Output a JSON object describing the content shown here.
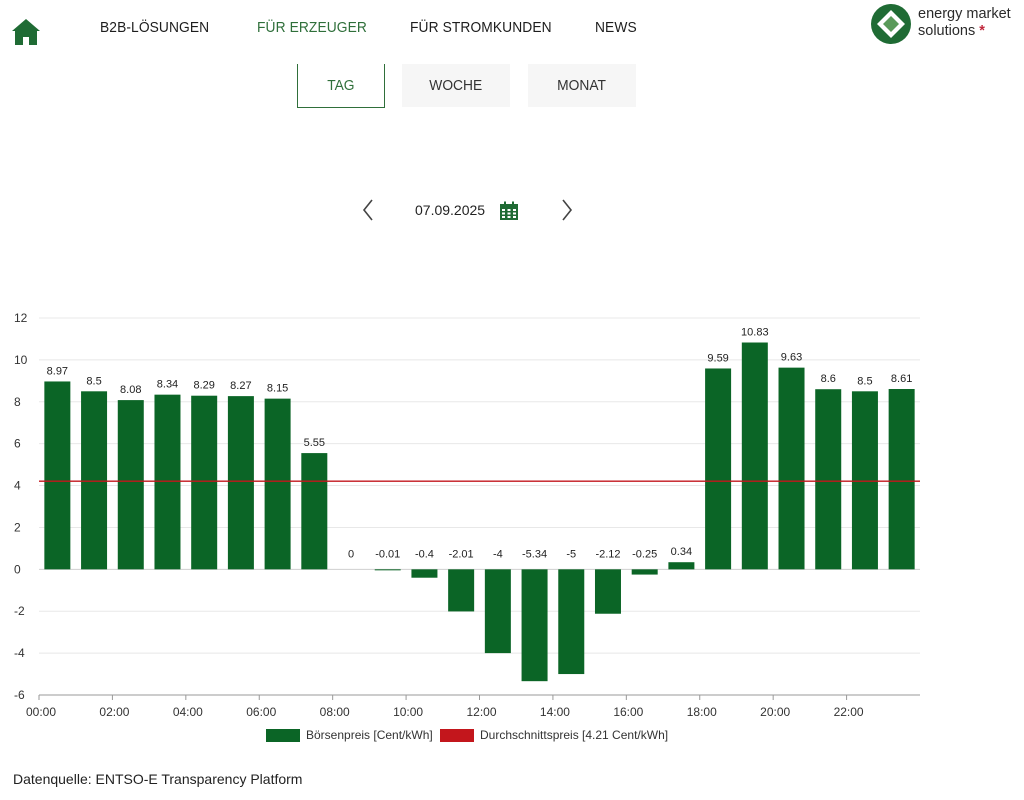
{
  "nav": {
    "items": [
      "B2B-LÖSUNGEN",
      "FÜR ERZEUGER",
      "FÜR STROMKUNDEN",
      "NEWS"
    ],
    "active_index": 1
  },
  "logo": {
    "line1": "energy market",
    "line2": "solutions",
    "star": "*"
  },
  "tabs": {
    "items": [
      "TAG",
      "WOCHE",
      "MONAT"
    ],
    "active_index": 0
  },
  "date_nav": {
    "date": "07.09.2025"
  },
  "colors": {
    "brand_green": "#0b6526",
    "accent_green": "#2f6f3a",
    "average_red": "#c3161c"
  },
  "chart_data": {
    "type": "bar",
    "categories": [
      "00:00",
      "01:00",
      "02:00",
      "03:00",
      "04:00",
      "05:00",
      "06:00",
      "07:00",
      "08:00",
      "09:00",
      "10:00",
      "11:00",
      "12:00",
      "13:00",
      "14:00",
      "15:00",
      "16:00",
      "17:00",
      "18:00",
      "19:00",
      "20:00",
      "21:00",
      "22:00",
      "23:00"
    ],
    "x_tick_labels": [
      "00:00",
      "02:00",
      "04:00",
      "06:00",
      "08:00",
      "10:00",
      "12:00",
      "14:00",
      "16:00",
      "18:00",
      "20:00",
      "22:00"
    ],
    "series": [
      {
        "name": "Börsenpreis [Cent/kWh]",
        "type": "bar",
        "color": "#0b6526",
        "values": [
          8.97,
          8.5,
          8.08,
          8.34,
          8.29,
          8.27,
          8.15,
          5.55,
          0,
          -0.01,
          -0.4,
          -2.01,
          -4,
          -5.34,
          -5,
          -2.12,
          -0.25,
          0.34,
          9.59,
          10.83,
          9.63,
          8.6,
          8.5,
          8.61
        ],
        "labels": [
          "8.97",
          "8.5",
          "8.08",
          "8.34",
          "8.29",
          "8.27",
          "8.15",
          "5.55",
          "0",
          "-0.01",
          "-0.4",
          "-2.01",
          "-4",
          "-5.34",
          "-5",
          "-2.12",
          "-0.25",
          "0.34",
          "9.59",
          "10.83",
          "9.63",
          "8.6",
          "8.5",
          "8.61"
        ]
      },
      {
        "name": "Durchschnittspreis [4.21 Cent/kWh]",
        "type": "line",
        "color": "#c3161c",
        "value": 4.21
      }
    ],
    "y_ticks": [
      12,
      10,
      8,
      6,
      4,
      2,
      0,
      -2,
      -4,
      -6
    ],
    "ylim": [
      -6,
      12
    ],
    "grid": true,
    "legend_position": "bottom"
  },
  "source": {
    "text": "Datenquelle: ENTSO-E Transparency Platform"
  }
}
